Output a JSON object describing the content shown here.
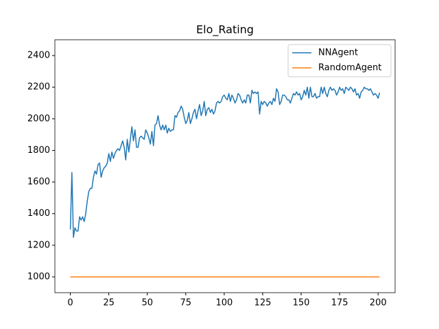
{
  "chart_data": {
    "type": "line",
    "title": "Elo_Rating",
    "x": [
      0,
      1,
      2,
      3,
      4,
      5,
      6,
      7,
      8,
      9,
      10,
      11,
      12,
      13,
      14,
      15,
      16,
      17,
      18,
      19,
      20,
      21,
      22,
      23,
      24,
      25,
      26,
      27,
      28,
      29,
      30,
      31,
      32,
      33,
      34,
      35,
      36,
      37,
      38,
      39,
      40,
      41,
      42,
      43,
      44,
      45,
      46,
      47,
      48,
      49,
      50,
      51,
      52,
      53,
      54,
      55,
      56,
      57,
      58,
      59,
      60,
      61,
      62,
      63,
      64,
      65,
      66,
      67,
      68,
      69,
      70,
      71,
      72,
      73,
      74,
      75,
      76,
      77,
      78,
      79,
      80,
      81,
      82,
      83,
      84,
      85,
      86,
      87,
      88,
      89,
      90,
      91,
      92,
      93,
      94,
      95,
      96,
      97,
      98,
      99,
      100,
      101,
      102,
      103,
      104,
      105,
      106,
      107,
      108,
      109,
      110,
      111,
      112,
      113,
      114,
      115,
      116,
      117,
      118,
      119,
      120,
      121,
      122,
      123,
      124,
      125,
      126,
      127,
      128,
      129,
      130,
      131,
      132,
      133,
      134,
      135,
      136,
      137,
      138,
      139,
      140,
      141,
      142,
      143,
      144,
      145,
      146,
      147,
      148,
      149,
      150,
      151,
      152,
      153,
      154,
      155,
      156,
      157,
      158,
      159,
      160,
      161,
      162,
      163,
      164,
      165,
      166,
      167,
      168,
      169,
      170,
      171,
      172,
      173,
      174,
      175,
      176,
      177,
      178,
      179,
      180,
      181,
      182,
      183,
      184,
      185,
      186,
      187,
      188,
      189,
      190,
      191,
      192,
      193,
      194,
      195,
      196,
      197,
      198,
      199,
      200,
      201
    ],
    "series": [
      {
        "name": "NNAgent",
        "color": "#1f77b4",
        "values": [
          1300,
          1660,
          1250,
          1310,
          1290,
          1290,
          1380,
          1360,
          1380,
          1350,
          1400,
          1480,
          1540,
          1560,
          1560,
          1630,
          1670,
          1650,
          1710,
          1720,
          1630,
          1670,
          1690,
          1700,
          1720,
          1780,
          1730,
          1790,
          1750,
          1780,
          1800,
          1810,
          1800,
          1830,
          1860,
          1820,
          1740,
          1870,
          1790,
          1870,
          1950,
          1860,
          1930,
          1820,
          1820,
          1880,
          1890,
          1880,
          1870,
          1930,
          1910,
          1880,
          1840,
          1920,
          1830,
          1960,
          1970,
          2020,
          1960,
          1930,
          1960,
          1930,
          1960,
          1910,
          1940,
          1920,
          1930,
          1930,
          2020,
          2010,
          2040,
          2050,
          2080,
          2060,
          2010,
          1970,
          1990,
          2040,
          1970,
          2000,
          2040,
          2060,
          2000,
          2050,
          2090,
          2020,
          2050,
          2110,
          2020,
          2060,
          2070,
          2040,
          2060,
          2030,
          2050,
          2100,
          2110,
          2100,
          2110,
          2140,
          2150,
          2130,
          2120,
          2160,
          2110,
          2150,
          2130,
          2100,
          2120,
          2160,
          2150,
          2120,
          2100,
          2120,
          2100,
          2150,
          2150,
          2100,
          2180,
          2160,
          2170,
          2160,
          2170,
          2030,
          2110,
          2090,
          2110,
          2100,
          2080,
          2100,
          2110,
          2090,
          2130,
          2110,
          2190,
          2170,
          2090,
          2110,
          2150,
          2150,
          2140,
          2120,
          2120,
          2100,
          2130,
          2160,
          2150,
          2170,
          2150,
          2160,
          2120,
          2140,
          2180,
          2150,
          2200,
          2130,
          2200,
          2140,
          2140,
          2160,
          2130,
          2140,
          2140,
          2200,
          2160,
          2200,
          2160,
          2140,
          2180,
          2200,
          2180,
          2190,
          2180,
          2150,
          2170,
          2200,
          2180,
          2190,
          2160,
          2200,
          2190,
          2180,
          2200,
          2190,
          2170,
          2190,
          2150,
          2160,
          2130,
          2170,
          2180,
          2200,
          2190,
          2190,
          2180,
          2190,
          2170,
          2150,
          2160,
          2150,
          2130,
          2165
        ]
      },
      {
        "name": "RandomAgent",
        "color": "#ff7f0e",
        "values": [
          1000,
          1000,
          1000,
          1000,
          1000,
          1000,
          1000,
          1000,
          1000,
          1000,
          1000,
          1000,
          1000,
          1000,
          1000,
          1000,
          1000,
          1000,
          1000,
          1000,
          1000,
          1000,
          1000,
          1000,
          1000,
          1000,
          1000,
          1000,
          1000,
          1000,
          1000,
          1000,
          1000,
          1000,
          1000,
          1000,
          1000,
          1000,
          1000,
          1000,
          1000,
          1000,
          1000,
          1000,
          1000,
          1000,
          1000,
          1000,
          1000,
          1000,
          1000,
          1000,
          1000,
          1000,
          1000,
          1000,
          1000,
          1000,
          1000,
          1000,
          1000,
          1000,
          1000,
          1000,
          1000,
          1000,
          1000,
          1000,
          1000,
          1000,
          1000,
          1000,
          1000,
          1000,
          1000,
          1000,
          1000,
          1000,
          1000,
          1000,
          1000,
          1000,
          1000,
          1000,
          1000,
          1000,
          1000,
          1000,
          1000,
          1000,
          1000,
          1000,
          1000,
          1000,
          1000,
          1000,
          1000,
          1000,
          1000,
          1000,
          1000,
          1000,
          1000,
          1000,
          1000,
          1000,
          1000,
          1000,
          1000,
          1000,
          1000,
          1000,
          1000,
          1000,
          1000,
          1000,
          1000,
          1000,
          1000,
          1000,
          1000,
          1000,
          1000,
          1000,
          1000,
          1000,
          1000,
          1000,
          1000,
          1000,
          1000,
          1000,
          1000,
          1000,
          1000,
          1000,
          1000,
          1000,
          1000,
          1000,
          1000,
          1000,
          1000,
          1000,
          1000,
          1000,
          1000,
          1000,
          1000,
          1000,
          1000,
          1000,
          1000,
          1000,
          1000,
          1000,
          1000,
          1000,
          1000,
          1000,
          1000,
          1000,
          1000,
          1000,
          1000,
          1000,
          1000,
          1000,
          1000,
          1000,
          1000,
          1000,
          1000,
          1000,
          1000,
          1000,
          1000,
          1000,
          1000,
          1000,
          1000,
          1000,
          1000,
          1000,
          1000,
          1000,
          1000,
          1000,
          1000,
          1000,
          1000,
          1000,
          1000,
          1000,
          1000,
          1000,
          1000,
          1000,
          1000,
          1000,
          1000,
          1000
        ]
      }
    ],
    "xlim": [
      -10.05,
      211.05
    ],
    "xticks": [
      0,
      25,
      50,
      75,
      100,
      125,
      150,
      175,
      200
    ],
    "ylim": [
      900,
      2500
    ],
    "yticks": [
      1000,
      1200,
      1400,
      1600,
      1800,
      2000,
      2200,
      2400
    ],
    "legend": "upper right"
  }
}
